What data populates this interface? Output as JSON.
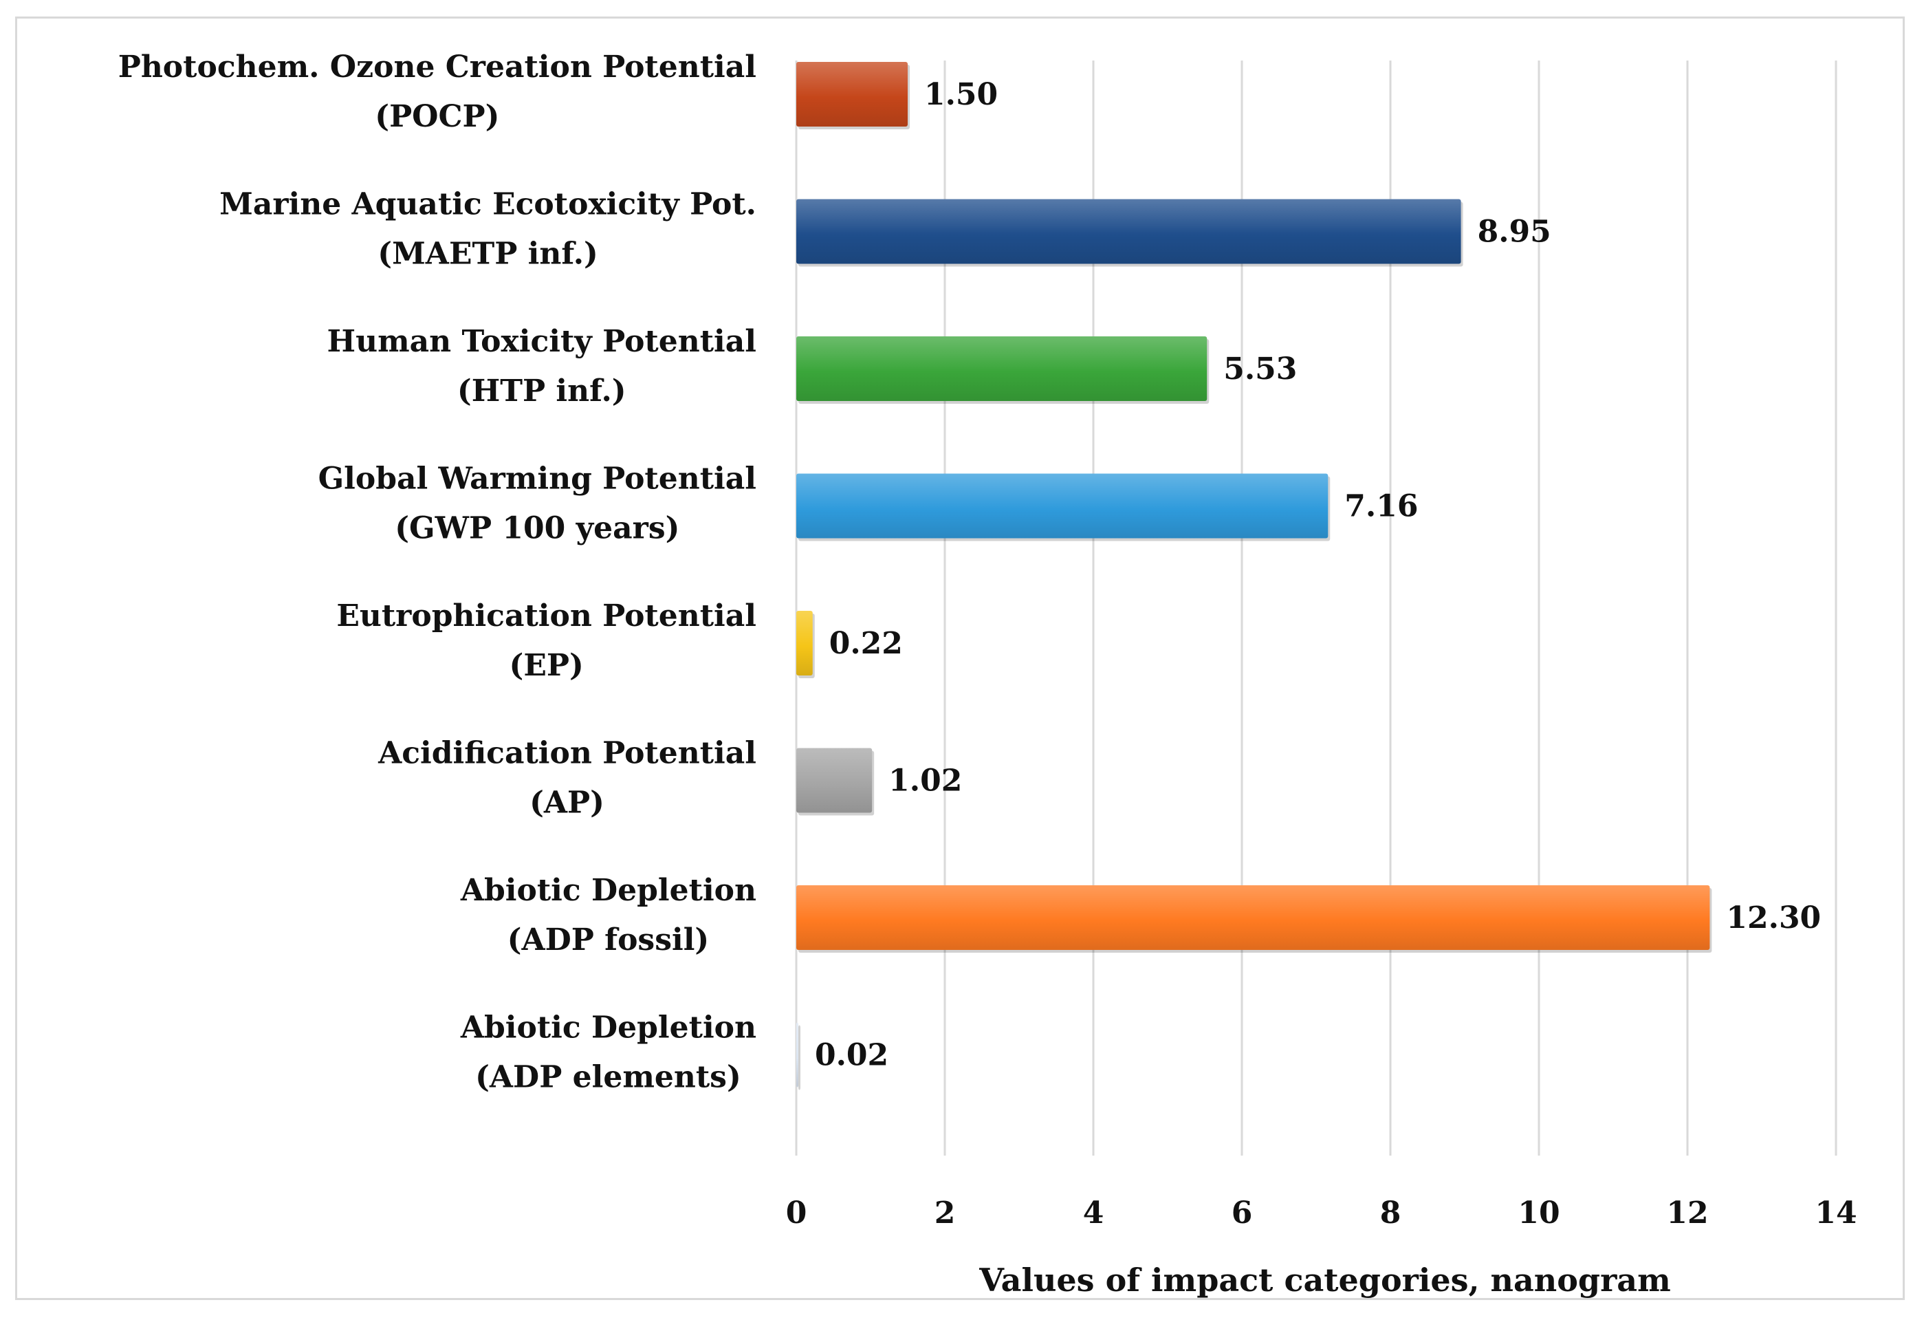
{
  "chart_data": {
    "type": "bar",
    "orientation": "horizontal",
    "title": "",
    "xlabel": "Values of impact categories, nanogram",
    "ylabel": "",
    "xlim": [
      0,
      14
    ],
    "xticks": [
      0,
      2,
      4,
      6,
      8,
      10,
      12,
      14
    ],
    "grid": true,
    "categories": [
      {
        "line1": "Photochem. Ozone Creation Potential",
        "line2": "(POCP)"
      },
      {
        "line1": "Marine Aquatic Ecotoxicity Pot.",
        "line2": "(MAETP inf.)"
      },
      {
        "line1": "Human Toxicity Potential",
        "line2": "(HTP inf.)"
      },
      {
        "line1": "Global Warming Potential",
        "line2": "(GWP 100 years)"
      },
      {
        "line1": "Eutrophication Potential",
        "line2": "(EP)"
      },
      {
        "line1": "Acidification Potential",
        "line2": "(AP)"
      },
      {
        "line1": "Abiotic Depletion",
        "line2": "(ADP fossil)"
      },
      {
        "line1": "Abiotic Depletion",
        "line2": "(ADP elements)"
      }
    ],
    "values": [
      1.5,
      8.95,
      5.53,
      7.16,
      0.22,
      1.02,
      12.3,
      0.02
    ],
    "value_labels": [
      "1.50",
      "8.95",
      "5.53",
      "7.16",
      "0.22",
      "1.02",
      "12.30",
      "0.02"
    ],
    "colors": [
      "#c5461a",
      "#1f4e8c",
      "#3aa63a",
      "#2f9bdc",
      "#f5c518",
      "#a6a6a6",
      "#ff7a21",
      "#dce6f2"
    ]
  }
}
